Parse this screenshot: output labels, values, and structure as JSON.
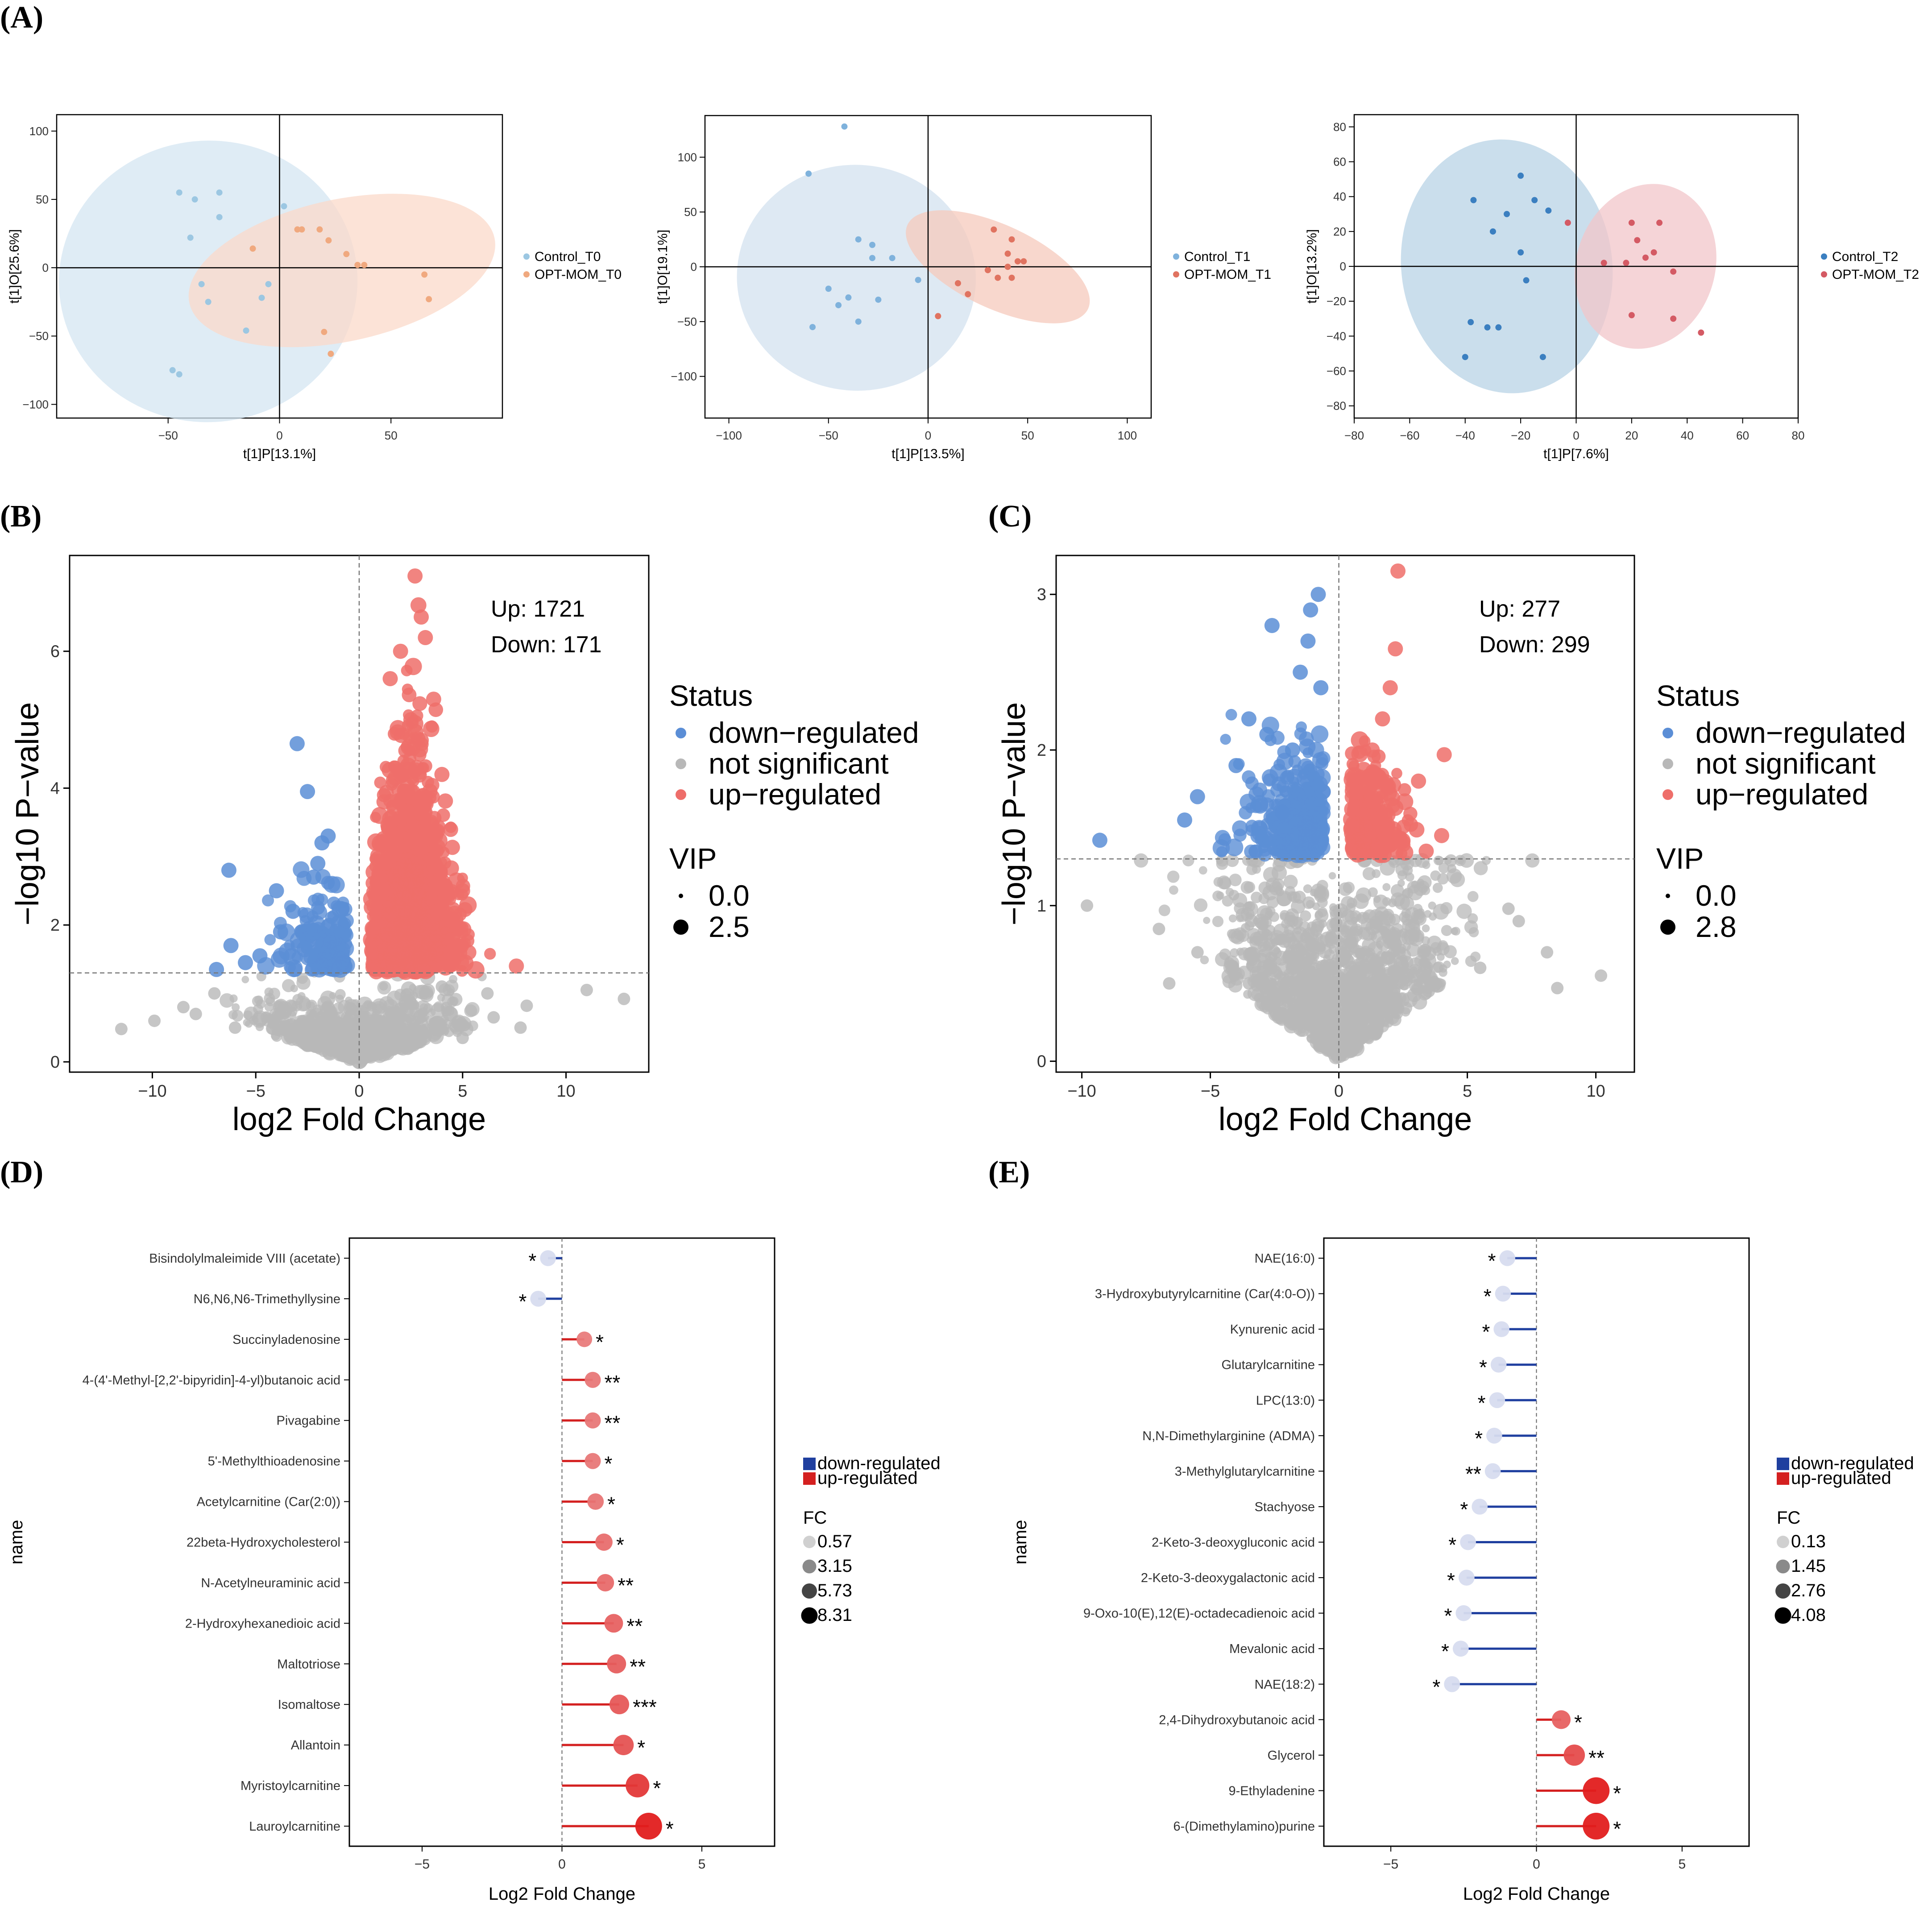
{
  "panel_labels": [
    "(A)",
    "(B)",
    "(C)",
    "(D)",
    "(E)"
  ],
  "colors": {
    "control": "#7fb2dc",
    "opt": "#e8735f",
    "down": "#5b8ed6",
    "up": "#ee6e6a",
    "ns": "#b8b8b8",
    "lolli_down": "#1f3f9f",
    "lolli_up": "#d42020"
  },
  "chart_data": [
    {
      "id": "pca_t0",
      "type": "scatter",
      "panel": "(A)",
      "xlabel": "t[1]P[13.1%]",
      "ylabel": "t[1]O[25.6%]",
      "xlim": [
        -100,
        100
      ],
      "ylim": [
        -110,
        112
      ],
      "xticks": [
        -50,
        0,
        50
      ],
      "yticks": [
        -100,
        -50,
        0,
        50,
        100
      ],
      "ellipse_colors": [
        "#d4e6f2",
        "#fbd9c9"
      ],
      "series": [
        {
          "name": "Control_T0",
          "color": "#9cc7e2",
          "points": [
            [
              -48,
              -75
            ],
            [
              -45,
              -78
            ],
            [
              -45,
              55
            ],
            [
              -40,
              22
            ],
            [
              -38,
              50
            ],
            [
              -35,
              -12
            ],
            [
              -32,
              -25
            ],
            [
              -27,
              55
            ],
            [
              -27,
              37
            ],
            [
              -15,
              -46
            ],
            [
              -8,
              -22
            ],
            [
              2,
              45
            ],
            [
              -5,
              -12
            ]
          ],
          "ellipse": {
            "cx": -32,
            "cy": -10,
            "rx": 67,
            "ry": 103,
            "rot": 3
          }
        },
        {
          "name": "OPT-MOM_T0",
          "color": "#f0a97f",
          "points": [
            [
              8,
              28
            ],
            [
              10,
              28
            ],
            [
              18,
              28
            ],
            [
              22,
              20
            ],
            [
              30,
              10
            ],
            [
              35,
              2
            ],
            [
              38,
              2
            ],
            [
              65,
              -5
            ],
            [
              67,
              -23
            ],
            [
              20,
              -47
            ],
            [
              23,
              -63
            ],
            [
              -12,
              14
            ]
          ],
          "ellipse": {
            "cx": 28,
            "cy": -2,
            "rx": 70,
            "ry": 52,
            "rot": 12
          }
        }
      ]
    },
    {
      "id": "pca_t1",
      "type": "scatter",
      "panel": "(A)",
      "xlabel": "t[1]P[13.5%]",
      "ylabel": "t[1]O[19.1%]",
      "xlim": [
        -112,
        112
      ],
      "ylim": [
        -138,
        138
      ],
      "xticks": [
        -100,
        -50,
        0,
        50,
        100
      ],
      "yticks": [
        -100,
        -50,
        0,
        50,
        100
      ],
      "ellipse_colors": [
        "#d3e1ef",
        "#f5c9bc"
      ],
      "series": [
        {
          "name": "Control_T1",
          "color": "#7fb2dc",
          "points": [
            [
              -42,
              128
            ],
            [
              -60,
              85
            ],
            [
              -35,
              25
            ],
            [
              -28,
              8
            ],
            [
              -50,
              -20
            ],
            [
              -40,
              -28
            ],
            [
              -25,
              -30
            ],
            [
              -45,
              -35
            ],
            [
              -58,
              -55
            ],
            [
              -35,
              -50
            ],
            [
              -18,
              8
            ],
            [
              -5,
              -12
            ],
            [
              -28,
              20
            ]
          ],
          "ellipse": {
            "cx": -36,
            "cy": -10,
            "rx": 60,
            "ry": 103,
            "rot": -5
          }
        },
        {
          "name": "OPT-MOM_T1",
          "color": "#e07360",
          "points": [
            [
              33,
              34
            ],
            [
              42,
              25
            ],
            [
              45,
              5
            ],
            [
              48,
              5
            ],
            [
              40,
              12
            ],
            [
              30,
              -3
            ],
            [
              35,
              -10
            ],
            [
              42,
              -10
            ],
            [
              15,
              -15
            ],
            [
              20,
              -25
            ],
            [
              5,
              -45
            ],
            [
              40,
              0
            ]
          ],
          "ellipse": {
            "cx": 35,
            "cy": 0,
            "rx": 50,
            "ry": 38,
            "rot": -25
          }
        }
      ]
    },
    {
      "id": "pca_t2",
      "type": "scatter",
      "panel": "(A)",
      "xlabel": "t[1]P[7.6%]",
      "ylabel": "t[1]O[13.2%]",
      "xlim": [
        -80,
        80
      ],
      "ylim": [
        -87,
        87
      ],
      "xticks": [
        -80,
        -60,
        -40,
        -20,
        0,
        20,
        40,
        60,
        80
      ],
      "yticks": [
        -80,
        -60,
        -40,
        -20,
        0,
        20,
        40,
        60,
        80
      ],
      "ellipse_colors": [
        "#b8d3e6",
        "#f1c6c9"
      ],
      "series": [
        {
          "name": "Control_T2",
          "color": "#3b7fc0",
          "points": [
            [
              -37,
              38
            ],
            [
              -20,
              52
            ],
            [
              -15,
              38
            ],
            [
              -30,
              20
            ],
            [
              -25,
              30
            ],
            [
              -10,
              32
            ],
            [
              -20,
              8
            ],
            [
              -18,
              -8
            ],
            [
              -32,
              -35
            ],
            [
              -38,
              -32
            ],
            [
              -28,
              -35
            ],
            [
              -40,
              -52
            ],
            [
              -12,
              -52
            ]
          ],
          "ellipse": {
            "cx": -25,
            "cy": 0,
            "rx": 38,
            "ry": 73,
            "rot": 8
          }
        },
        {
          "name": "OPT-MOM_T2",
          "color": "#d45a64",
          "points": [
            [
              -3,
              25
            ],
            [
              20,
              25
            ],
            [
              30,
              25
            ],
            [
              22,
              15
            ],
            [
              28,
              8
            ],
            [
              10,
              2
            ],
            [
              18,
              2
            ],
            [
              25,
              5
            ],
            [
              35,
              -3
            ],
            [
              20,
              -28
            ],
            [
              35,
              -30
            ],
            [
              45,
              -38
            ]
          ],
          "ellipse": {
            "cx": 25,
            "cy": 0,
            "rx": 25,
            "ry": 48,
            "rot": -18
          }
        }
      ]
    },
    {
      "id": "volcano_b",
      "type": "scatter",
      "panel": "(B)",
      "xlabel": "log2 Fold Change",
      "ylabel": "−log10 P−value",
      "xlim": [
        -14,
        14
      ],
      "ylim": [
        -0.15,
        7.4
      ],
      "xticks": [
        -10,
        -5,
        0,
        5,
        10
      ],
      "yticks": [
        0,
        2,
        4,
        6
      ],
      "threshold_y": 1.3,
      "up": 1721,
      "down": 171,
      "annotation": {
        "up_label": "Up: 1721",
        "down_label": "Down: 171"
      },
      "legend": {
        "status_title": "Status",
        "status": [
          "down−regulated",
          "not significant",
          "up−regulated"
        ],
        "vip_title": "VIP",
        "vip_sizes": [
          "0.0",
          "2.5"
        ]
      },
      "highlight_points": {
        "down": [
          [
            -3,
            4.65
          ],
          [
            -2.5,
            3.95
          ],
          [
            -6.3,
            2.8
          ],
          [
            -1.5,
            3.3
          ],
          [
            -1.8,
            3.2
          ],
          [
            -2,
            2.9
          ],
          [
            -4,
            2.5
          ],
          [
            -3.2,
            2.2
          ],
          [
            -2.2,
            2.7
          ],
          [
            -6.9,
            1.35
          ],
          [
            -5.5,
            1.45
          ],
          [
            -4.8,
            1.55
          ],
          [
            -6.2,
            1.7
          ],
          [
            -3.8,
            1.9
          ]
        ],
        "up": [
          [
            2.7,
            7.1
          ],
          [
            3,
            6.5
          ],
          [
            3.2,
            6.2
          ],
          [
            1.5,
            5.6
          ],
          [
            2.5,
            5.0
          ],
          [
            3,
            4.7
          ],
          [
            4,
            4.2
          ],
          [
            7.6,
            1.4
          ],
          [
            5.3,
            1.6
          ],
          [
            4.5,
            2.0
          ],
          [
            5,
            2.5
          ],
          [
            1.2,
            3.8
          ],
          [
            2.0,
            6.0
          ],
          [
            3.6,
            5.3
          ]
        ],
        "ns": [
          [
            -11.5,
            0.48
          ],
          [
            -9.9,
            0.6
          ],
          [
            -7.9,
            0.7
          ],
          [
            -7.0,
            1.0
          ],
          [
            -6.0,
            0.5
          ],
          [
            4,
            1.1
          ],
          [
            6.2,
            1.0
          ],
          [
            8.1,
            0.82
          ],
          [
            7.8,
            0.5
          ],
          [
            11,
            1.05
          ],
          [
            12.8,
            0.92
          ],
          [
            5,
            0.35
          ],
          [
            -8.5,
            0.8
          ],
          [
            6.5,
            0.65
          ]
        ]
      }
    },
    {
      "id": "volcano_c",
      "type": "scatter",
      "panel": "(C)",
      "xlabel": "log2 Fold Change",
      "ylabel": "−log10 P−value",
      "xlim": [
        -11,
        11.5
      ],
      "ylim": [
        -0.07,
        3.25
      ],
      "xticks": [
        -10,
        -5,
        0,
        5,
        10
      ],
      "yticks": [
        0,
        1,
        2,
        3
      ],
      "threshold_y": 1.3,
      "up": 277,
      "down": 299,
      "annotation": {
        "up_label": "Up: 277",
        "down_label": "Down: 299"
      },
      "legend": {
        "status_title": "Status",
        "status": [
          "down−regulated",
          "not significant",
          "up−regulated"
        ],
        "vip_title": "VIP",
        "vip_sizes": [
          "0.0",
          "2.8"
        ]
      },
      "highlight_points": {
        "down": [
          [
            -0.8,
            3.0
          ],
          [
            -1.1,
            2.9
          ],
          [
            -2.6,
            2.8
          ],
          [
            -1.2,
            2.7
          ],
          [
            -1.5,
            2.5
          ],
          [
            -3.5,
            2.2
          ],
          [
            -2.8,
            2.1
          ],
          [
            -9.3,
            1.42
          ],
          [
            -6,
            1.55
          ],
          [
            -5.5,
            1.7
          ],
          [
            -4,
            1.9
          ],
          [
            -1.8,
            2.0
          ],
          [
            -0.7,
            2.4
          ],
          [
            -2.2,
            1.6
          ]
        ],
        "up": [
          [
            2.3,
            3.15
          ],
          [
            2.2,
            2.65
          ],
          [
            1.7,
            2.2
          ],
          [
            4.1,
            1.97
          ],
          [
            3.1,
            1.8
          ],
          [
            2.0,
            2.4
          ],
          [
            1.3,
            2.0
          ],
          [
            4.0,
            1.45
          ],
          [
            3.4,
            1.35
          ],
          [
            1.5,
            1.6
          ]
        ],
        "ns": [
          [
            -9.8,
            1.0
          ],
          [
            -7,
            0.85
          ],
          [
            -6.6,
            0.5
          ],
          [
            -5.5,
            0.7
          ],
          [
            7.0,
            0.9
          ],
          [
            8.1,
            0.7
          ],
          [
            8.5,
            0.47
          ],
          [
            10.2,
            0.55
          ],
          [
            5.5,
            0.6
          ],
          [
            6.6,
            0.98
          ],
          [
            -3.5,
            0.5
          ],
          [
            3.5,
            0.45
          ]
        ]
      }
    },
    {
      "id": "lollipop_d",
      "type": "bar",
      "panel": "(D)",
      "xlabel": "Log2 Fold Change",
      "ylabel": "name",
      "xlim": [
        -7.6,
        7.6
      ],
      "xticks": [
        -5,
        0,
        5
      ],
      "legend": {
        "dir": [
          "down-regulated",
          "up-regulated"
        ],
        "fc_title": "FC",
        "fc_values": [
          "0.57",
          "3.15",
          "5.73",
          "8.31"
        ]
      },
      "categories": [
        "Bisindolylmaleimide VIII (acetate)",
        "N6,N6,N6-Trimethyllysine",
        "Succinyladenosine",
        "4-(4'-Methyl-[2,2'-bipyridin]-4-yl)butanoic acid",
        "Pivagabine",
        "5'-Methylthioadenosine",
        "Acetylcarnitine (Car(2:0))",
        "22beta-Hydroxycholesterol",
        "N-Acetylneuraminic acid",
        "2-Hydroxyhexanedioic acid",
        "Maltotriose",
        "Isomaltose",
        "Allantoin",
        "Myristoylcarnitine",
        "Lauroylcarnitine"
      ],
      "values": [
        -0.5,
        -0.85,
        0.8,
        1.1,
        1.1,
        1.1,
        1.2,
        1.5,
        1.55,
        1.85,
        1.95,
        2.05,
        2.2,
        2.7,
        3.1
      ],
      "fc": [
        0.7,
        0.57,
        1.8,
        2.1,
        2.1,
        2.1,
        2.3,
        2.8,
        2.9,
        3.6,
        3.9,
        4.2,
        4.6,
        6.5,
        8.3
      ],
      "significance": [
        "*",
        "*",
        "*",
        "**",
        "**",
        "*",
        "*",
        "*",
        "**",
        "**",
        "**",
        "***",
        "*",
        "*",
        "*"
      ]
    },
    {
      "id": "lollipop_e",
      "type": "bar",
      "panel": "(E)",
      "xlabel": "Log2 Fold Change",
      "ylabel": "name",
      "xlim": [
        -7.3,
        7.3
      ],
      "xticks": [
        -5,
        0,
        5
      ],
      "legend": {
        "dir": [
          "down-regulated",
          "up-regulated"
        ],
        "fc_title": "FC",
        "fc_values": [
          "0.13",
          "1.45",
          "2.76",
          "4.08"
        ]
      },
      "categories": [
        "NAE(16:0)",
        "3-Hydroxybutyrylcarnitine (Car(4:0-O))",
        "Kynurenic acid",
        "Glutarylcarnitine",
        "LPC(13:0)",
        "N,N-Dimethylarginine (ADMA)",
        "3-Methylglutarylcarnitine",
        "Stachyose",
        "2-Keto-3-deoxygluconic acid",
        "2-Keto-3-deoxygalactonic acid",
        "9-Oxo-10(E),12(E)-octadecadienoic acid",
        "Mevalonic acid",
        "NAE(18:2)",
        "2,4-Dihydroxybutanoic acid",
        "Glycerol",
        "9-Ethyladenine",
        "6-(Dimethylamino)purine"
      ],
      "values": [
        -1.0,
        -1.15,
        -1.2,
        -1.3,
        -1.35,
        -1.45,
        -1.5,
        -1.95,
        -2.35,
        -2.4,
        -2.5,
        -2.6,
        -2.9,
        0.85,
        1.3,
        2.05,
        2.05
      ],
      "fc": [
        0.5,
        0.45,
        0.43,
        0.41,
        0.39,
        0.37,
        0.35,
        0.26,
        0.2,
        0.19,
        0.18,
        0.17,
        0.13,
        1.8,
        2.5,
        4.08,
        4.08
      ],
      "significance": [
        "*",
        "*",
        "*",
        "*",
        "*",
        "*",
        "**",
        "*",
        "*",
        "*",
        "*",
        "*",
        "*",
        "*",
        "**",
        "*",
        "*"
      ]
    }
  ]
}
